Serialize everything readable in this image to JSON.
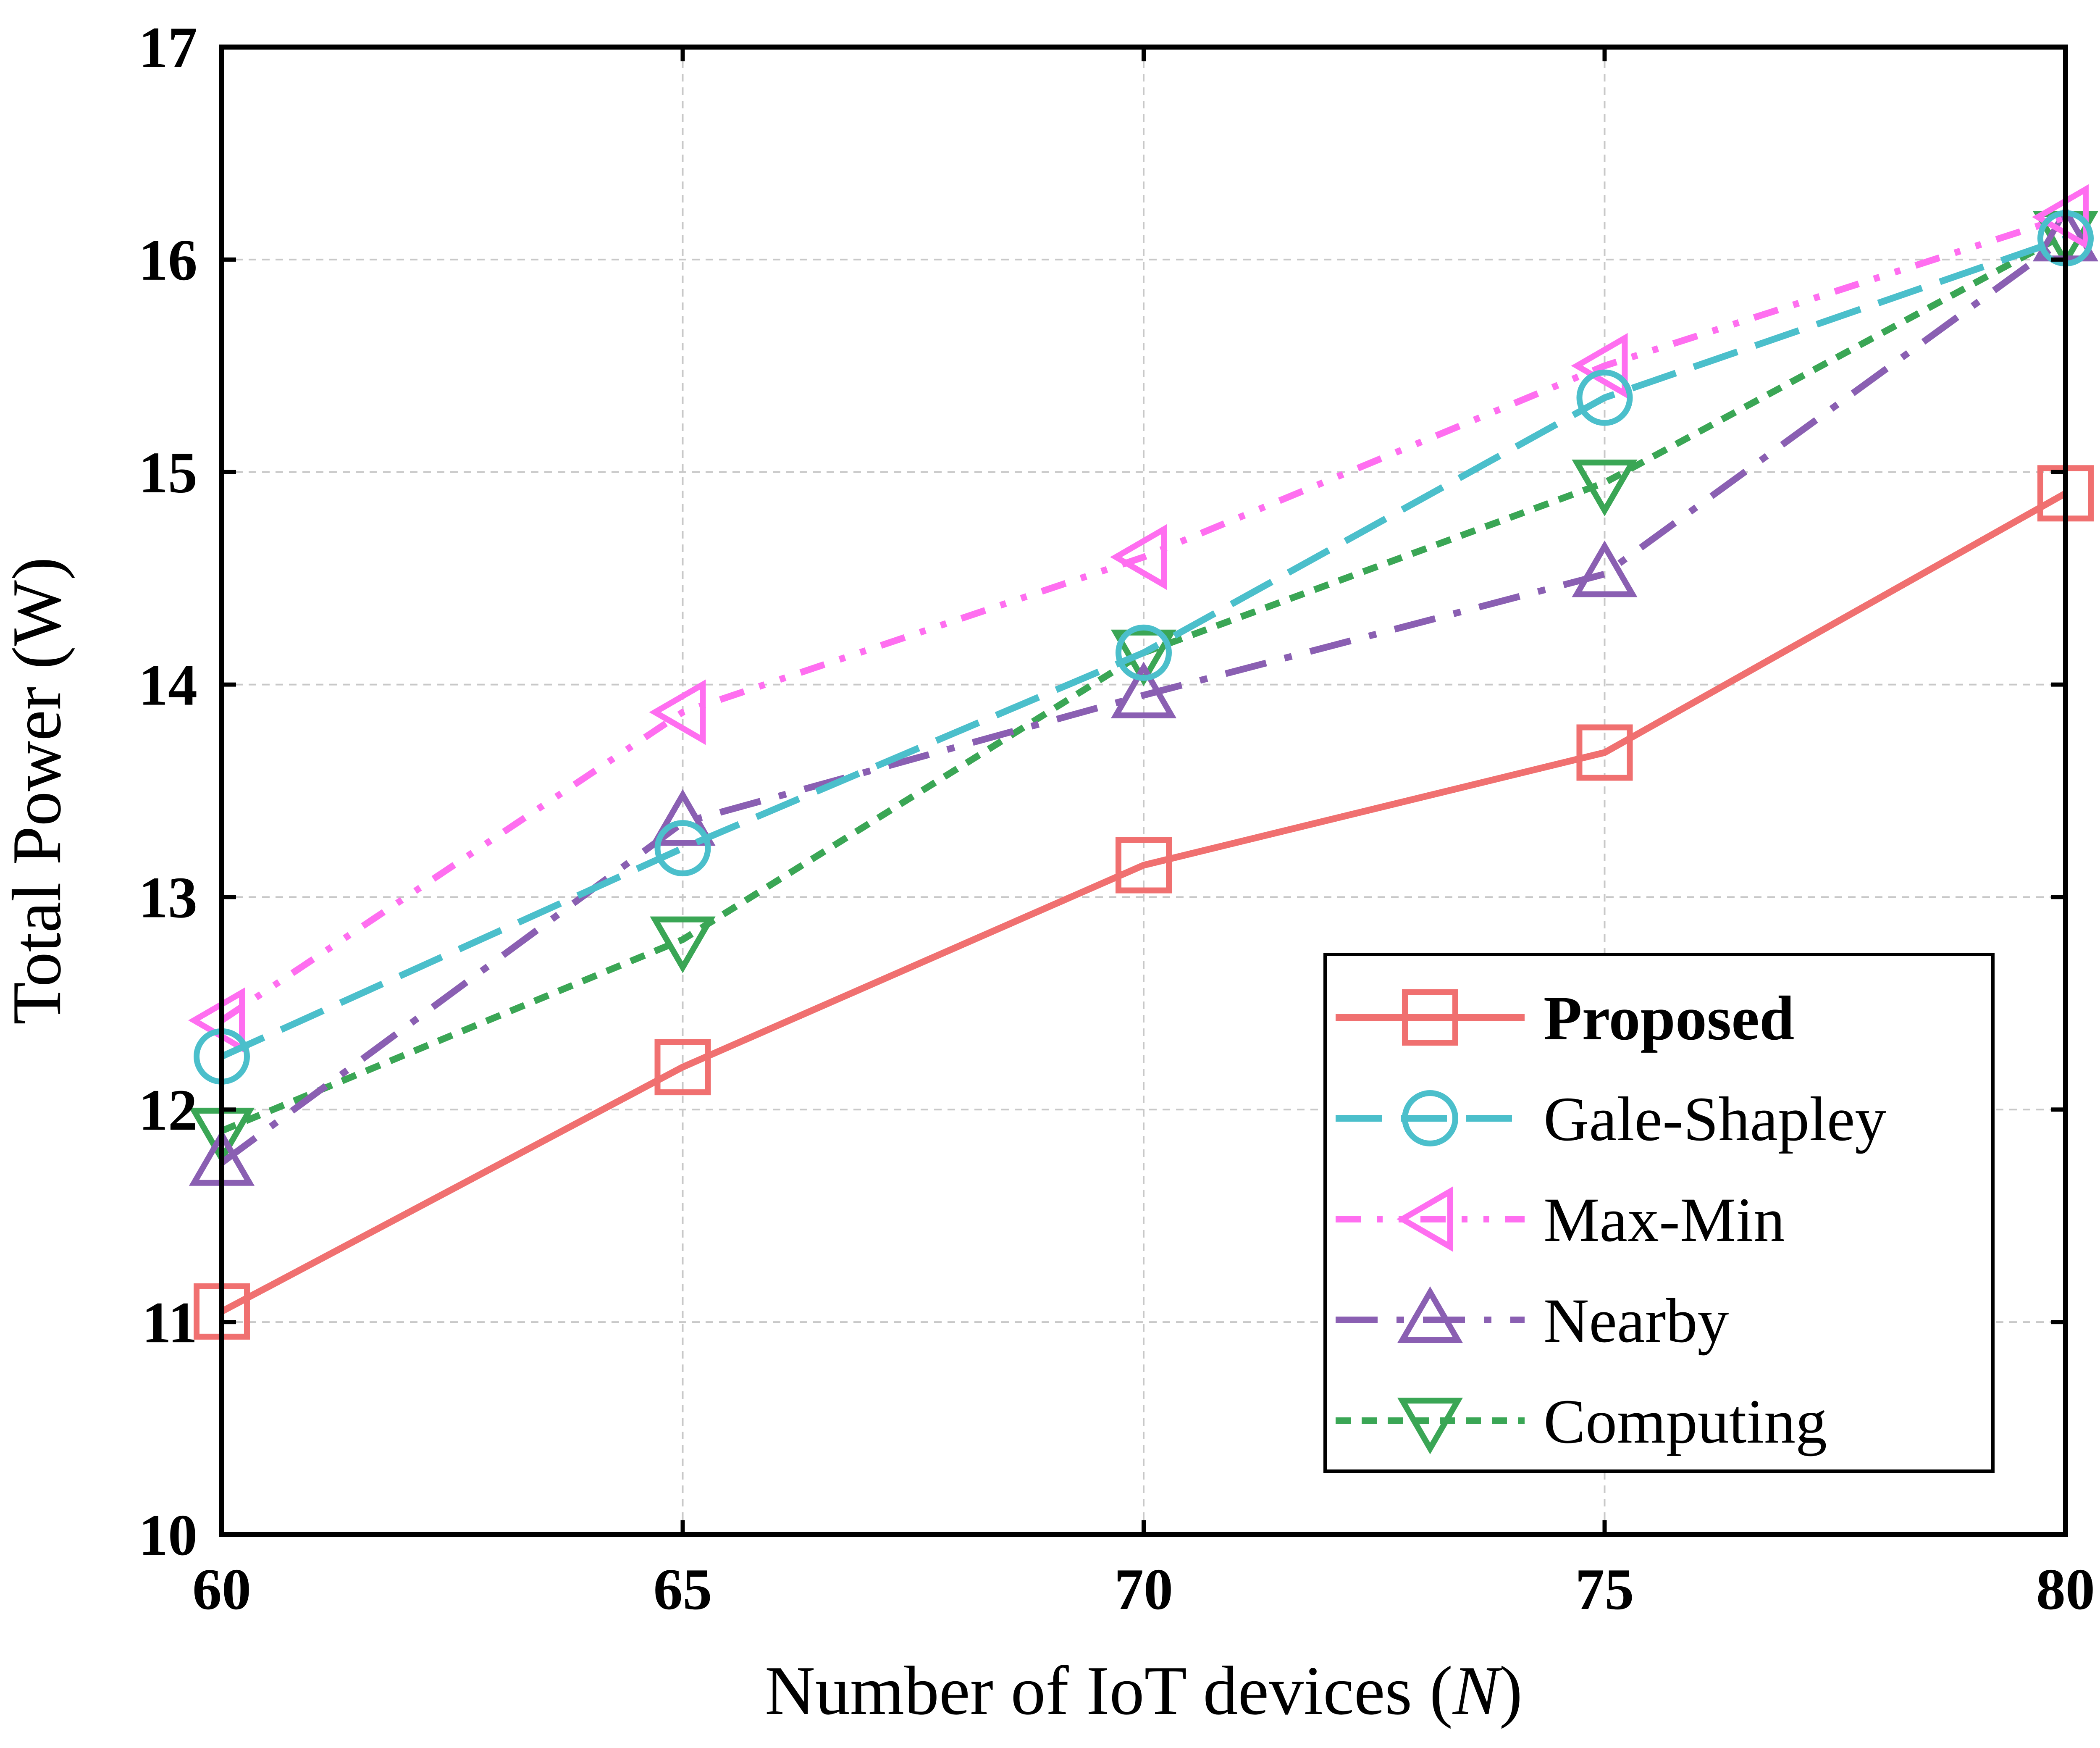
{
  "chart_data": {
    "type": "line",
    "title": "",
    "xlabel": "Number of IoT devices",
    "xlabel_symbol": "N",
    "ylabel": "Total Power (W)",
    "x": [
      60,
      65,
      70,
      75,
      80
    ],
    "xlim": [
      60,
      80
    ],
    "ylim": [
      10,
      17
    ],
    "xticks": [
      "60",
      "65",
      "70",
      "75",
      "80"
    ],
    "yticks": [
      "10",
      "11",
      "12",
      "13",
      "14",
      "15",
      "16",
      "17"
    ],
    "grid": true,
    "legend_position": "lower-right",
    "series": [
      {
        "name": "Proposed",
        "values": [
          11.05,
          12.2,
          13.15,
          13.68,
          14.9
        ],
        "color": "#F07070",
        "marker": "square",
        "line_style": "solid",
        "bold_label": true
      },
      {
        "name": "Gale-Shapley",
        "values": [
          12.25,
          13.23,
          14.15,
          15.35,
          16.1
        ],
        "color": "#4BBFCB",
        "marker": "circle",
        "line_style": "long-dash",
        "bold_label": false
      },
      {
        "name": "Max-Min",
        "values": [
          12.42,
          13.87,
          14.6,
          15.5,
          16.2
        ],
        "color": "#FF6EF0",
        "marker": "triangle-left",
        "line_style": "dash-dot-dot",
        "bold_label": false
      },
      {
        "name": "Nearby",
        "values": [
          11.75,
          13.35,
          13.95,
          14.52,
          16.1
        ],
        "color": "#8A5FB2",
        "marker": "triangle-up",
        "line_style": "dash-dot",
        "bold_label": false
      },
      {
        "name": "Computing",
        "values": [
          11.9,
          12.8,
          14.15,
          14.95,
          16.12
        ],
        "color": "#3AA655",
        "marker": "triangle-down",
        "line_style": "short-dash",
        "bold_label": false
      }
    ]
  }
}
